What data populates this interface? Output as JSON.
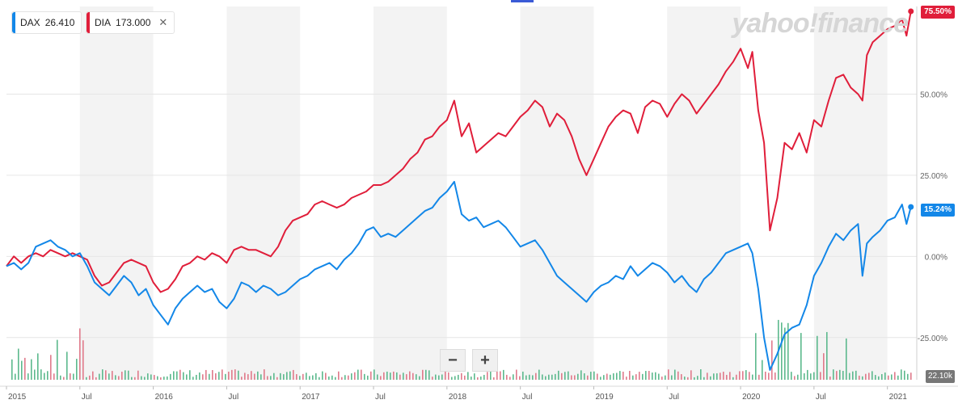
{
  "legend": [
    {
      "symbol": "DAX",
      "value": "26.410",
      "color": "#1387e8"
    },
    {
      "symbol": "DIA",
      "value": "173.000",
      "color": "#e01e3a",
      "close": "✕"
    }
  ],
  "watermark": "yahoo!finance",
  "price_tags": {
    "dia": "75.50%",
    "dax": "15.24%"
  },
  "volume_tag": "22.10k",
  "zoom": {
    "minus": "−",
    "plus": "+"
  },
  "chart_data": {
    "type": "line",
    "y_axis_ticks": [
      "50.00%",
      "25.00%",
      "0.00%",
      "-25.00%"
    ],
    "y_tick_values": [
      50,
      25,
      0,
      -25
    ],
    "ylim": [
      -38,
      77
    ],
    "x_range": [
      2015.0,
      2021.2
    ],
    "x_ticks": [
      {
        "label": "2015",
        "x": 2015.0
      },
      {
        "label": "Jul",
        "x": 2015.5
      },
      {
        "label": "2016",
        "x": 2016.0
      },
      {
        "label": "Jul",
        "x": 2016.5
      },
      {
        "label": "2017",
        "x": 2017.0
      },
      {
        "label": "Jul",
        "x": 2017.5
      },
      {
        "label": "2018",
        "x": 2018.0
      },
      {
        "label": "Jul",
        "x": 2018.5
      },
      {
        "label": "2019",
        "x": 2019.0
      },
      {
        "label": "Jul",
        "x": 2019.5
      },
      {
        "label": "2020",
        "x": 2020.0
      },
      {
        "label": "Jul",
        "x": 2020.5
      },
      {
        "label": "2021",
        "x": 2021.0
      }
    ],
    "series": [
      {
        "name": "DIA",
        "color": "#e01e3a",
        "points": [
          [
            2015.0,
            -3
          ],
          [
            2015.05,
            0
          ],
          [
            2015.1,
            -2
          ],
          [
            2015.15,
            0
          ],
          [
            2015.2,
            1
          ],
          [
            2015.25,
            0
          ],
          [
            2015.3,
            2
          ],
          [
            2015.35,
            1
          ],
          [
            2015.4,
            0
          ],
          [
            2015.45,
            1
          ],
          [
            2015.5,
            0
          ],
          [
            2015.55,
            -1
          ],
          [
            2015.6,
            -6
          ],
          [
            2015.65,
            -9
          ],
          [
            2015.7,
            -8
          ],
          [
            2015.75,
            -5
          ],
          [
            2015.8,
            -2
          ],
          [
            2015.85,
            -1
          ],
          [
            2015.9,
            -2
          ],
          [
            2015.95,
            -3
          ],
          [
            2016.0,
            -8
          ],
          [
            2016.05,
            -11
          ],
          [
            2016.1,
            -10
          ],
          [
            2016.15,
            -7
          ],
          [
            2016.2,
            -3
          ],
          [
            2016.25,
            -2
          ],
          [
            2016.3,
            0
          ],
          [
            2016.35,
            -1
          ],
          [
            2016.4,
            1
          ],
          [
            2016.45,
            0
          ],
          [
            2016.5,
            -2
          ],
          [
            2016.55,
            2
          ],
          [
            2016.6,
            3
          ],
          [
            2016.65,
            2
          ],
          [
            2016.7,
            2
          ],
          [
            2016.75,
            1
          ],
          [
            2016.8,
            0
          ],
          [
            2016.85,
            3
          ],
          [
            2016.9,
            8
          ],
          [
            2016.95,
            11
          ],
          [
            2017.0,
            12
          ],
          [
            2017.05,
            13
          ],
          [
            2017.1,
            16
          ],
          [
            2017.15,
            17
          ],
          [
            2017.2,
            16
          ],
          [
            2017.25,
            15
          ],
          [
            2017.3,
            16
          ],
          [
            2017.35,
            18
          ],
          [
            2017.4,
            19
          ],
          [
            2017.45,
            20
          ],
          [
            2017.5,
            22
          ],
          [
            2017.55,
            22
          ],
          [
            2017.6,
            23
          ],
          [
            2017.65,
            25
          ],
          [
            2017.7,
            27
          ],
          [
            2017.75,
            30
          ],
          [
            2017.8,
            32
          ],
          [
            2017.85,
            36
          ],
          [
            2017.9,
            37
          ],
          [
            2017.95,
            40
          ],
          [
            2018.0,
            42
          ],
          [
            2018.05,
            48
          ],
          [
            2018.1,
            37
          ],
          [
            2018.15,
            41
          ],
          [
            2018.2,
            32
          ],
          [
            2018.25,
            34
          ],
          [
            2018.3,
            36
          ],
          [
            2018.35,
            38
          ],
          [
            2018.4,
            37
          ],
          [
            2018.45,
            40
          ],
          [
            2018.5,
            43
          ],
          [
            2018.55,
            45
          ],
          [
            2018.6,
            48
          ],
          [
            2018.65,
            46
          ],
          [
            2018.7,
            40
          ],
          [
            2018.75,
            44
          ],
          [
            2018.8,
            42
          ],
          [
            2018.85,
            37
          ],
          [
            2018.9,
            30
          ],
          [
            2018.95,
            25
          ],
          [
            2019.0,
            30
          ],
          [
            2019.05,
            35
          ],
          [
            2019.1,
            40
          ],
          [
            2019.15,
            43
          ],
          [
            2019.2,
            45
          ],
          [
            2019.25,
            44
          ],
          [
            2019.3,
            38
          ],
          [
            2019.35,
            46
          ],
          [
            2019.4,
            48
          ],
          [
            2019.45,
            47
          ],
          [
            2019.5,
            43
          ],
          [
            2019.55,
            47
          ],
          [
            2019.6,
            50
          ],
          [
            2019.65,
            48
          ],
          [
            2019.7,
            44
          ],
          [
            2019.75,
            47
          ],
          [
            2019.8,
            50
          ],
          [
            2019.85,
            53
          ],
          [
            2019.9,
            57
          ],
          [
            2019.95,
            60
          ],
          [
            2020.0,
            64
          ],
          [
            2020.05,
            58
          ],
          [
            2020.08,
            63
          ],
          [
            2020.12,
            45
          ],
          [
            2020.16,
            35
          ],
          [
            2020.2,
            8
          ],
          [
            2020.25,
            18
          ],
          [
            2020.3,
            35
          ],
          [
            2020.35,
            33
          ],
          [
            2020.4,
            38
          ],
          [
            2020.45,
            32
          ],
          [
            2020.5,
            42
          ],
          [
            2020.55,
            40
          ],
          [
            2020.6,
            48
          ],
          [
            2020.65,
            55
          ],
          [
            2020.7,
            56
          ],
          [
            2020.75,
            52
          ],
          [
            2020.8,
            50
          ],
          [
            2020.83,
            48
          ],
          [
            2020.86,
            62
          ],
          [
            2020.9,
            66
          ],
          [
            2020.95,
            68
          ],
          [
            2021.0,
            70
          ],
          [
            2021.05,
            71
          ],
          [
            2021.1,
            73
          ],
          [
            2021.13,
            68
          ],
          [
            2021.16,
            75.5
          ]
        ]
      },
      {
        "name": "DAX",
        "color": "#1387e8",
        "points": [
          [
            2015.0,
            -3
          ],
          [
            2015.05,
            -2
          ],
          [
            2015.1,
            -4
          ],
          [
            2015.15,
            -2
          ],
          [
            2015.2,
            3
          ],
          [
            2015.25,
            4
          ],
          [
            2015.3,
            5
          ],
          [
            2015.35,
            3
          ],
          [
            2015.4,
            2
          ],
          [
            2015.45,
            0
          ],
          [
            2015.5,
            1
          ],
          [
            2015.55,
            -3
          ],
          [
            2015.6,
            -8
          ],
          [
            2015.65,
            -10
          ],
          [
            2015.7,
            -12
          ],
          [
            2015.75,
            -9
          ],
          [
            2015.8,
            -6
          ],
          [
            2015.85,
            -8
          ],
          [
            2015.9,
            -12
          ],
          [
            2015.95,
            -10
          ],
          [
            2016.0,
            -15
          ],
          [
            2016.05,
            -18
          ],
          [
            2016.1,
            -21
          ],
          [
            2016.15,
            -16
          ],
          [
            2016.2,
            -13
          ],
          [
            2016.25,
            -11
          ],
          [
            2016.3,
            -9
          ],
          [
            2016.35,
            -11
          ],
          [
            2016.4,
            -10
          ],
          [
            2016.45,
            -14
          ],
          [
            2016.5,
            -16
          ],
          [
            2016.55,
            -13
          ],
          [
            2016.6,
            -8
          ],
          [
            2016.65,
            -9
          ],
          [
            2016.7,
            -11
          ],
          [
            2016.75,
            -9
          ],
          [
            2016.8,
            -10
          ],
          [
            2016.85,
            -12
          ],
          [
            2016.9,
            -11
          ],
          [
            2016.95,
            -9
          ],
          [
            2017.0,
            -7
          ],
          [
            2017.05,
            -6
          ],
          [
            2017.1,
            -4
          ],
          [
            2017.15,
            -3
          ],
          [
            2017.2,
            -2
          ],
          [
            2017.25,
            -4
          ],
          [
            2017.3,
            -1
          ],
          [
            2017.35,
            1
          ],
          [
            2017.4,
            4
          ],
          [
            2017.45,
            8
          ],
          [
            2017.5,
            9
          ],
          [
            2017.55,
            6
          ],
          [
            2017.6,
            7
          ],
          [
            2017.65,
            6
          ],
          [
            2017.7,
            8
          ],
          [
            2017.75,
            10
          ],
          [
            2017.8,
            12
          ],
          [
            2017.85,
            14
          ],
          [
            2017.9,
            15
          ],
          [
            2017.95,
            18
          ],
          [
            2018.0,
            20
          ],
          [
            2018.05,
            23
          ],
          [
            2018.1,
            13
          ],
          [
            2018.15,
            11
          ],
          [
            2018.2,
            12
          ],
          [
            2018.25,
            9
          ],
          [
            2018.3,
            10
          ],
          [
            2018.35,
            11
          ],
          [
            2018.4,
            9
          ],
          [
            2018.45,
            6
          ],
          [
            2018.5,
            3
          ],
          [
            2018.55,
            4
          ],
          [
            2018.6,
            5
          ],
          [
            2018.65,
            2
          ],
          [
            2018.7,
            -2
          ],
          [
            2018.75,
            -6
          ],
          [
            2018.8,
            -8
          ],
          [
            2018.85,
            -10
          ],
          [
            2018.9,
            -12
          ],
          [
            2018.95,
            -14
          ],
          [
            2019.0,
            -11
          ],
          [
            2019.05,
            -9
          ],
          [
            2019.1,
            -8
          ],
          [
            2019.15,
            -6
          ],
          [
            2019.2,
            -7
          ],
          [
            2019.25,
            -3
          ],
          [
            2019.3,
            -6
          ],
          [
            2019.35,
            -4
          ],
          [
            2019.4,
            -2
          ],
          [
            2019.45,
            -3
          ],
          [
            2019.5,
            -5
          ],
          [
            2019.55,
            -8
          ],
          [
            2019.6,
            -6
          ],
          [
            2019.65,
            -9
          ],
          [
            2019.7,
            -11
          ],
          [
            2019.75,
            -7
          ],
          [
            2019.8,
            -5
          ],
          [
            2019.85,
            -2
          ],
          [
            2019.9,
            1
          ],
          [
            2019.95,
            2
          ],
          [
            2020.0,
            3
          ],
          [
            2020.05,
            4
          ],
          [
            2020.08,
            1
          ],
          [
            2020.12,
            -10
          ],
          [
            2020.16,
            -25
          ],
          [
            2020.2,
            -35
          ],
          [
            2020.25,
            -30
          ],
          [
            2020.3,
            -24
          ],
          [
            2020.35,
            -22
          ],
          [
            2020.4,
            -21
          ],
          [
            2020.45,
            -15
          ],
          [
            2020.5,
            -6
          ],
          [
            2020.55,
            -2
          ],
          [
            2020.6,
            3
          ],
          [
            2020.65,
            7
          ],
          [
            2020.7,
            5
          ],
          [
            2020.75,
            8
          ],
          [
            2020.8,
            10
          ],
          [
            2020.83,
            -6
          ],
          [
            2020.86,
            4
          ],
          [
            2020.9,
            6
          ],
          [
            2020.95,
            8
          ],
          [
            2021.0,
            11
          ],
          [
            2021.05,
            12
          ],
          [
            2021.1,
            16
          ],
          [
            2021.13,
            10
          ],
          [
            2021.16,
            15.24
          ]
        ]
      }
    ]
  }
}
